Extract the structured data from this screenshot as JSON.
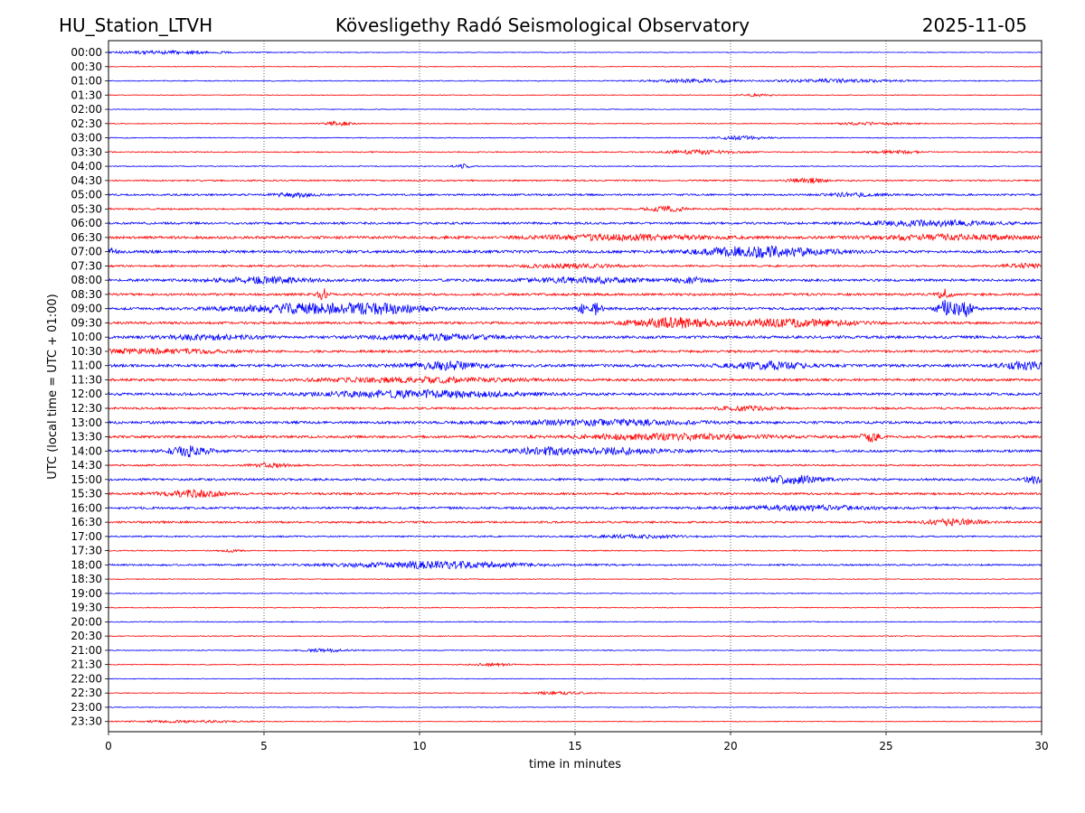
{
  "header": {
    "station": "HU_Station_LTVH",
    "title": "Kövesligethy Radó Seismological Observatory",
    "date": "2025-11-05"
  },
  "chart_data": {
    "type": "line",
    "title": "Kövesligethy Radó Seismological Observatory",
    "xlabel": "time in minutes",
    "ylabel": "UTC (local time = UTC + 01:00)",
    "xlim": [
      0,
      30
    ],
    "xticks": [
      0,
      5,
      10,
      15,
      20,
      25,
      30
    ],
    "grid": "vertical dotted lines at x = 5, 10, 15, 20, 25",
    "colors": {
      "even_row": "#0000ff",
      "odd_row": "#ff0000"
    },
    "rows": [
      {
        "label": "00:00",
        "noise": 0.4,
        "events": [
          {
            "t": 1.8,
            "w": 2.2,
            "a": 1.5
          }
        ]
      },
      {
        "label": "00:30",
        "noise": 0.4,
        "events": []
      },
      {
        "label": "01:00",
        "noise": 0.5,
        "events": [
          {
            "t": 18.8,
            "w": 1.5,
            "a": 1.6
          },
          {
            "t": 23.5,
            "w": 2.0,
            "a": 1.8
          }
        ]
      },
      {
        "label": "01:30",
        "noise": 0.4,
        "events": [
          {
            "t": 20.8,
            "w": 0.6,
            "a": 1.2
          }
        ]
      },
      {
        "label": "02:00",
        "noise": 0.4,
        "events": []
      },
      {
        "label": "02:30",
        "noise": 0.5,
        "events": [
          {
            "t": 7.4,
            "w": 0.4,
            "a": 2.5
          },
          {
            "t": 24.5,
            "w": 1.2,
            "a": 1.3
          }
        ]
      },
      {
        "label": "03:00",
        "noise": 0.5,
        "events": [
          {
            "t": 20.4,
            "w": 0.8,
            "a": 2.0
          }
        ]
      },
      {
        "label": "03:30",
        "noise": 0.6,
        "events": [
          {
            "t": 19.0,
            "w": 1.2,
            "a": 2.0
          },
          {
            "t": 25.3,
            "w": 0.8,
            "a": 1.6
          }
        ]
      },
      {
        "label": "04:00",
        "noise": 0.5,
        "events": [
          {
            "t": 11.4,
            "w": 0.3,
            "a": 2.2
          }
        ]
      },
      {
        "label": "04:30",
        "noise": 0.8,
        "events": [
          {
            "t": 22.5,
            "w": 0.6,
            "a": 2.5
          }
        ]
      },
      {
        "label": "05:00",
        "noise": 1.0,
        "events": [
          {
            "t": 6.0,
            "w": 0.8,
            "a": 2.0
          },
          {
            "t": 24.0,
            "w": 0.8,
            "a": 2.0
          }
        ]
      },
      {
        "label": "05:30",
        "noise": 0.9,
        "events": [
          {
            "t": 17.9,
            "w": 0.6,
            "a": 3.0
          }
        ]
      },
      {
        "label": "06:00",
        "noise": 1.2,
        "events": [
          {
            "t": 26.5,
            "w": 2.0,
            "a": 3.0
          }
        ]
      },
      {
        "label": "06:30",
        "noise": 1.4,
        "events": [
          {
            "t": 16.5,
            "w": 3.0,
            "a": 2.5
          },
          {
            "t": 27.0,
            "w": 2.5,
            "a": 2.5
          }
        ]
      },
      {
        "label": "07:00",
        "noise": 1.5,
        "events": [
          {
            "t": 21.0,
            "w": 2.0,
            "a": 5.5
          },
          {
            "t": 0.1,
            "w": 0.3,
            "a": 3.0
          }
        ]
      },
      {
        "label": "07:30",
        "noise": 1.0,
        "events": [
          {
            "t": 14.8,
            "w": 1.5,
            "a": 2.0
          },
          {
            "t": 29.5,
            "w": 0.8,
            "a": 2.0
          }
        ]
      },
      {
        "label": "08:00",
        "noise": 1.4,
        "events": [
          {
            "t": 5.0,
            "w": 1.5,
            "a": 3.0
          },
          {
            "t": 15.5,
            "w": 2.0,
            "a": 2.5
          },
          {
            "t": 18.7,
            "w": 0.6,
            "a": 2.5
          }
        ]
      },
      {
        "label": "08:30",
        "noise": 1.3,
        "events": [
          {
            "t": 6.9,
            "w": 0.15,
            "a": 7.0
          },
          {
            "t": 26.9,
            "w": 0.2,
            "a": 6.0
          }
        ]
      },
      {
        "label": "09:00",
        "noise": 1.4,
        "events": [
          {
            "t": 6.5,
            "w": 2.5,
            "a": 5.0
          },
          {
            "t": 9.0,
            "w": 1.2,
            "a": 3.5
          },
          {
            "t": 15.2,
            "w": 0.15,
            "a": 6.0
          },
          {
            "t": 15.7,
            "w": 0.15,
            "a": 7.0
          },
          {
            "t": 26.9,
            "w": 0.25,
            "a": 9.0
          },
          {
            "t": 27.5,
            "w": 0.3,
            "a": 9.0
          }
        ]
      },
      {
        "label": "09:30",
        "noise": 1.3,
        "events": [
          {
            "t": 18.3,
            "w": 1.5,
            "a": 5.0
          },
          {
            "t": 22.0,
            "w": 2.0,
            "a": 4.0
          }
        ]
      },
      {
        "label": "10:00",
        "noise": 1.5,
        "events": [
          {
            "t": 3.3,
            "w": 1.5,
            "a": 2.5
          },
          {
            "t": 10.5,
            "w": 2.0,
            "a": 2.5
          }
        ]
      },
      {
        "label": "10:30",
        "noise": 1.3,
        "events": [
          {
            "t": 1.5,
            "w": 2.5,
            "a": 2.0
          }
        ]
      },
      {
        "label": "11:00",
        "noise": 1.5,
        "events": [
          {
            "t": 10.8,
            "w": 1.2,
            "a": 4.0
          },
          {
            "t": 21.2,
            "w": 1.2,
            "a": 3.5
          },
          {
            "t": 29.5,
            "w": 0.8,
            "a": 3.5
          }
        ]
      },
      {
        "label": "11:30",
        "noise": 1.3,
        "events": [
          {
            "t": 10.0,
            "w": 3.0,
            "a": 2.5
          }
        ]
      },
      {
        "label": "12:00",
        "noise": 1.4,
        "events": [
          {
            "t": 10.0,
            "w": 3.0,
            "a": 3.5
          }
        ]
      },
      {
        "label": "12:30",
        "noise": 1.1,
        "events": [
          {
            "t": 20.5,
            "w": 1.0,
            "a": 2.0
          }
        ]
      },
      {
        "label": "13:00",
        "noise": 1.4,
        "events": [
          {
            "t": 16.0,
            "w": 3.0,
            "a": 2.5
          }
        ]
      },
      {
        "label": "13:30",
        "noise": 1.3,
        "events": [
          {
            "t": 18.0,
            "w": 3.0,
            "a": 3.0
          },
          {
            "t": 24.5,
            "w": 0.3,
            "a": 5.0
          }
        ]
      },
      {
        "label": "14:00",
        "noise": 1.3,
        "events": [
          {
            "t": 2.6,
            "w": 0.6,
            "a": 6.0
          },
          {
            "t": 14.0,
            "w": 1.0,
            "a": 3.5
          },
          {
            "t": 16.5,
            "w": 1.5,
            "a": 3.0
          }
        ]
      },
      {
        "label": "14:30",
        "noise": 0.9,
        "events": [
          {
            "t": 5.2,
            "w": 0.6,
            "a": 2.0
          }
        ]
      },
      {
        "label": "15:00",
        "noise": 1.2,
        "events": [
          {
            "t": 22.0,
            "w": 1.0,
            "a": 4.0
          },
          {
            "t": 29.8,
            "w": 0.4,
            "a": 3.5
          }
        ]
      },
      {
        "label": "15:30",
        "noise": 1.2,
        "events": [
          {
            "t": 2.7,
            "w": 1.0,
            "a": 3.5
          }
        ]
      },
      {
        "label": "16:00",
        "noise": 1.2,
        "events": [
          {
            "t": 22.5,
            "w": 2.0,
            "a": 2.5
          }
        ]
      },
      {
        "label": "16:30",
        "noise": 1.1,
        "events": [
          {
            "t": 27.2,
            "w": 1.0,
            "a": 3.0
          }
        ]
      },
      {
        "label": "17:00",
        "noise": 0.8,
        "events": [
          {
            "t": 17.0,
            "w": 1.5,
            "a": 1.5
          }
        ]
      },
      {
        "label": "17:30",
        "noise": 0.6,
        "events": [
          {
            "t": 3.9,
            "w": 0.3,
            "a": 1.5
          }
        ]
      },
      {
        "label": "18:00",
        "noise": 0.9,
        "events": [
          {
            "t": 10.5,
            "w": 3.0,
            "a": 3.5
          }
        ]
      },
      {
        "label": "18:30",
        "noise": 0.5,
        "events": []
      },
      {
        "label": "19:00",
        "noise": 0.5,
        "events": []
      },
      {
        "label": "19:30",
        "noise": 0.5,
        "events": []
      },
      {
        "label": "20:00",
        "noise": 0.5,
        "events": []
      },
      {
        "label": "20:30",
        "noise": 0.5,
        "events": []
      },
      {
        "label": "21:00",
        "noise": 0.5,
        "events": [
          {
            "t": 7.0,
            "w": 0.8,
            "a": 1.5
          }
        ]
      },
      {
        "label": "21:30",
        "noise": 0.5,
        "events": [
          {
            "t": 12.3,
            "w": 0.6,
            "a": 1.5
          }
        ]
      },
      {
        "label": "22:00",
        "noise": 0.4,
        "events": []
      },
      {
        "label": "22:30",
        "noise": 0.4,
        "events": [
          {
            "t": 14.5,
            "w": 1.0,
            "a": 1.4
          }
        ]
      },
      {
        "label": "23:00",
        "noise": 0.4,
        "events": []
      },
      {
        "label": "23:30",
        "noise": 0.4,
        "events": [
          {
            "t": 2.5,
            "w": 2.0,
            "a": 1.2
          }
        ]
      }
    ]
  }
}
